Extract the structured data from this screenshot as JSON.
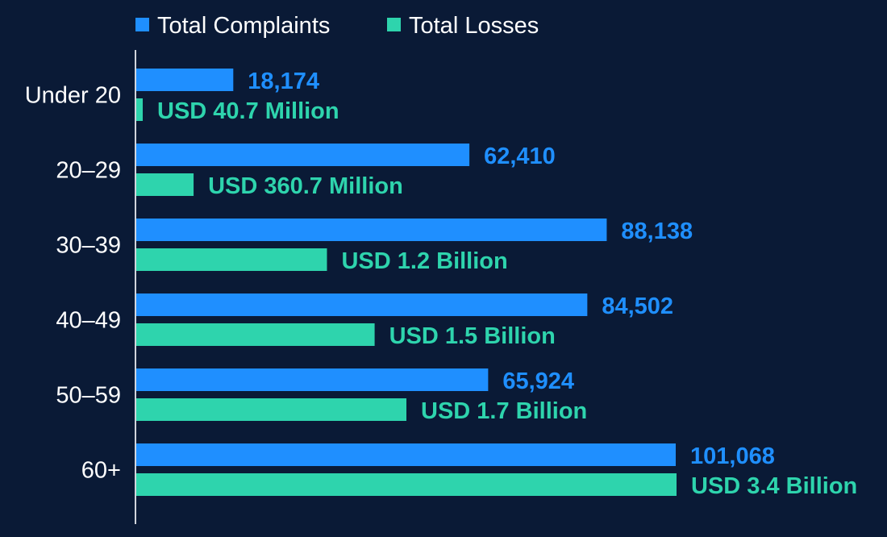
{
  "chart_data": {
    "type": "bar",
    "orientation": "horizontal",
    "categories": [
      "Under 20",
      "20–29",
      "30–39",
      "40–49",
      "50–59",
      "60+"
    ],
    "series": [
      {
        "name": "Total Complaints",
        "color": "#1f8fff",
        "values": [
          18174,
          62410,
          88138,
          84502,
          65924,
          101068
        ],
        "labels": [
          "18,174",
          "62,410",
          "88,138",
          "84,502",
          "65,924",
          "101,068"
        ]
      },
      {
        "name": "Total Losses",
        "color": "#2ed4ad",
        "unit": "USD",
        "values": [
          40.7,
          360.7,
          1200,
          1500,
          1700,
          3400
        ],
        "value_unit": "USD Million",
        "labels": [
          "USD 40.7 Million",
          "USD 360.7 Million",
          "USD 1.2 Billion",
          "USD 1.5 Billion",
          "USD 1.7 Billion",
          "USD 3.4 Billion"
        ]
      }
    ],
    "legend_position": "top",
    "grid": false,
    "title": "",
    "xlabel": "",
    "ylabel": ""
  }
}
